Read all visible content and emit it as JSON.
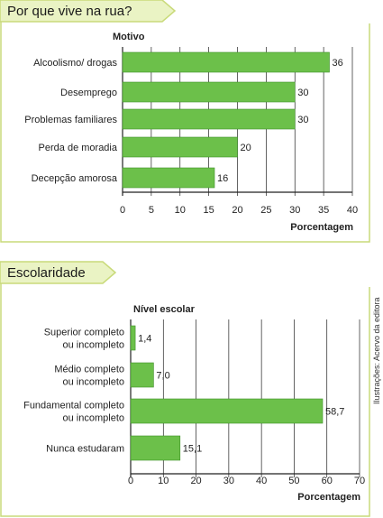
{
  "colors": {
    "bar": "#6cc04a",
    "bar_stroke": "#3f8f2a",
    "tab_fill": "#eaf3c4",
    "frame": "#c9da7a",
    "grid": "#222222"
  },
  "side_credit": "Ilustrações: Acervo da editora",
  "chart_data": [
    {
      "type": "bar",
      "orientation": "horizontal",
      "title": "Por que vive na rua?",
      "category_axis_title": "Motivo",
      "xlabel": "Porcentagem",
      "categories": [
        "Alcoolismo/ drogas",
        "Desemprego",
        "Problemas familiares",
        "Perda de moradia",
        "Decepção amorosa"
      ],
      "values": [
        36,
        30,
        30,
        20,
        16
      ],
      "value_labels": [
        "36",
        "30",
        "30",
        "20",
        "16"
      ],
      "xlim": [
        0,
        40
      ],
      "ticks": [
        0,
        5,
        10,
        15,
        20,
        25,
        30,
        35,
        40
      ],
      "grid": true
    },
    {
      "type": "bar",
      "orientation": "horizontal",
      "title": "Escolaridade",
      "category_axis_title": "Nível escolar",
      "xlabel": "Porcentagem",
      "categories": [
        [
          "Superior completo",
          "ou incompleto"
        ],
        [
          "Médio completo",
          "ou incompleto"
        ],
        [
          "Fundamental completo",
          "ou incompleto"
        ],
        [
          "Nunca estudaram"
        ]
      ],
      "values": [
        1.4,
        7.0,
        58.7,
        15.1
      ],
      "value_labels": [
        "1,4",
        "7,0",
        "58,7",
        "15,1"
      ],
      "xlim": [
        0,
        70
      ],
      "ticks": [
        0,
        10,
        20,
        30,
        40,
        50,
        60,
        70
      ],
      "grid": true
    }
  ]
}
